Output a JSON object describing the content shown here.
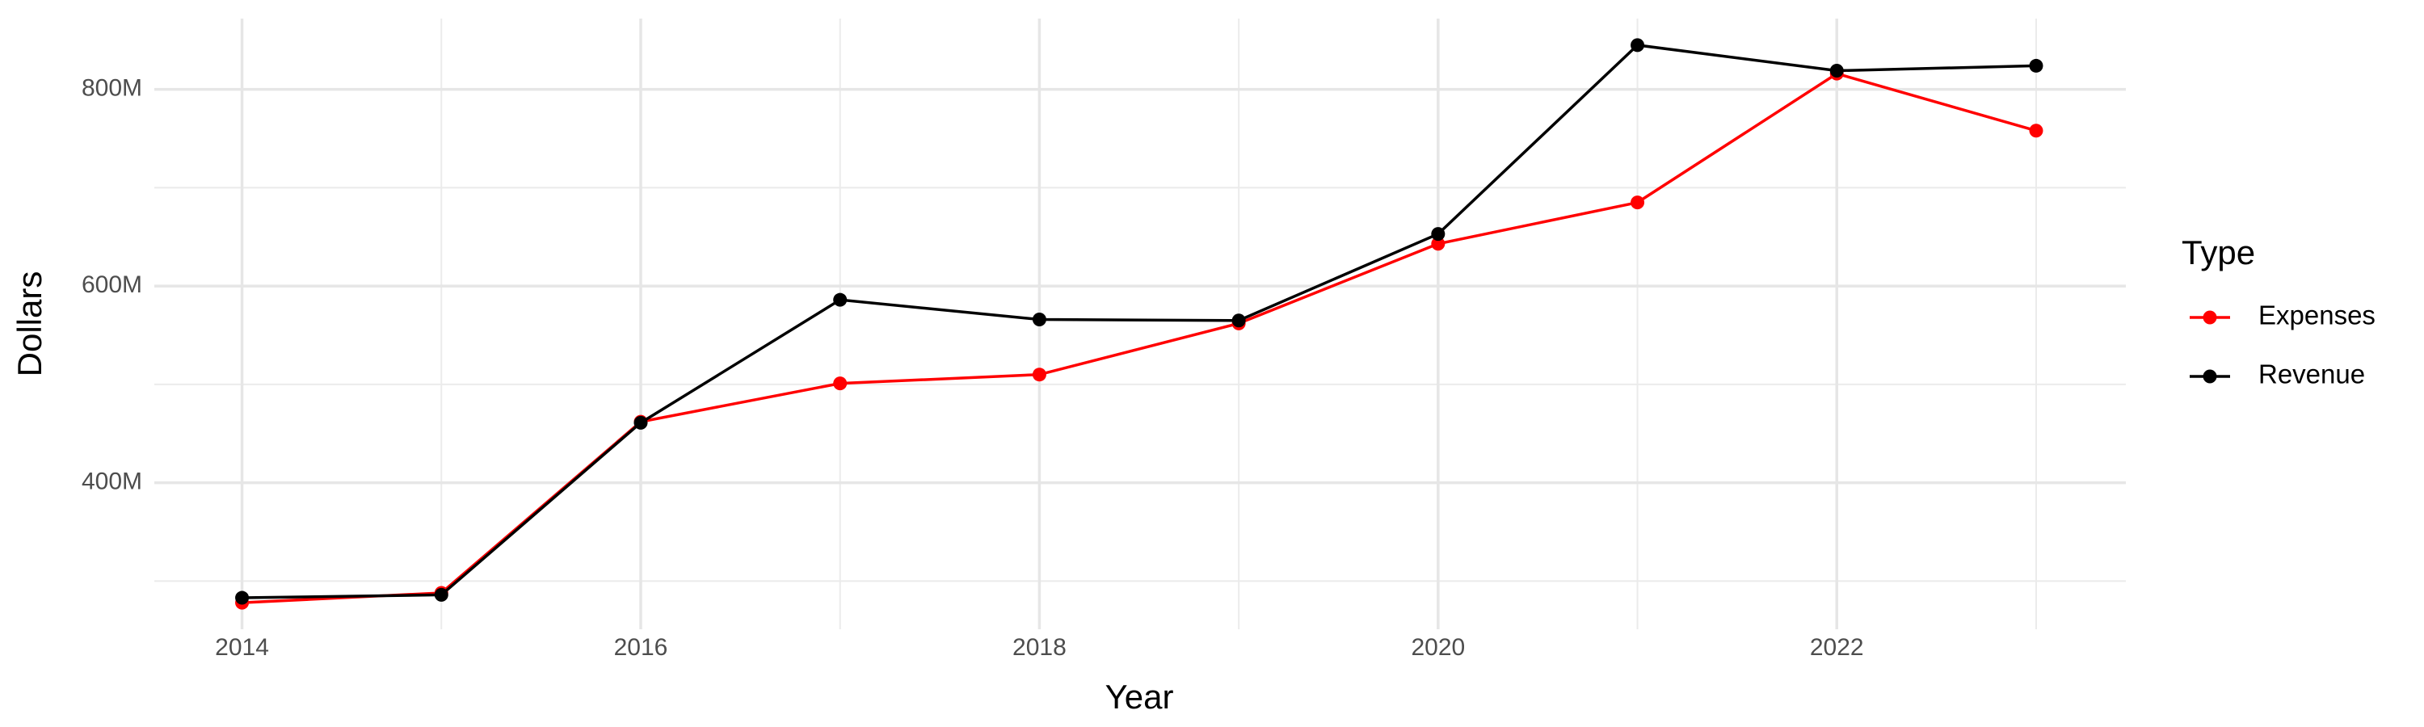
{
  "chart_data": {
    "type": "line",
    "x_label": "Year",
    "y_label": "Dollars",
    "legend_title": "Type",
    "legend_position": "right",
    "grid": true,
    "x": [
      2014,
      2015,
      2016,
      2017,
      2018,
      2019,
      2020,
      2021,
      2022,
      2023
    ],
    "series": [
      {
        "name": "Expenses",
        "color": "#ff0000",
        "values": [
          278000000,
          288000000,
          462000000,
          501000000,
          510000000,
          562000000,
          643000000,
          685000000,
          816000000,
          758000000
        ]
      },
      {
        "name": "Revenue",
        "color": "#000000",
        "values": [
          283000000,
          286000000,
          461000000,
          586000000,
          566000000,
          565000000,
          653000000,
          845000000,
          819000000,
          824000000
        ]
      }
    ],
    "xlim": [
      2013.56,
      2023.45
    ],
    "xticks": [
      2014,
      2016,
      2018,
      2020,
      2022
    ],
    "xminorticks": [
      2015,
      2017,
      2019,
      2021,
      2023
    ],
    "ylim": [
      251000000,
      872000000
    ],
    "yticks": [
      {
        "value": 400000000,
        "label": "400M"
      },
      {
        "value": 600000000,
        "label": "600M"
      },
      {
        "value": 800000000,
        "label": "800M"
      }
    ],
    "yminorticks": [
      300000000,
      500000000,
      700000000
    ]
  }
}
